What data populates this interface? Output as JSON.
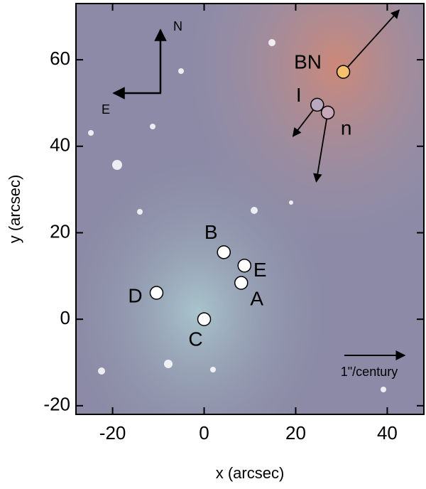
{
  "chart_data": {
    "type": "scatter",
    "x_label": "x (arcsec)",
    "y_label": "y (arcsec)",
    "xlim": [
      -28,
      48
    ],
    "ylim": [
      -22,
      73
    ],
    "xticks": [
      -20,
      0,
      20,
      40
    ],
    "yticks": [
      -20,
      0,
      20,
      40,
      60
    ],
    "labels": [
      "BN",
      "I",
      "n",
      "B",
      "E",
      "A",
      "D",
      "C"
    ],
    "x": [
      30.4,
      24.7,
      27.0,
      4.3,
      8.8,
      8.1,
      -10.4,
      0
    ],
    "y": [
      57.2,
      49.6,
      47.8,
      15.5,
      12.4,
      8.4,
      6.1,
      0
    ],
    "colors": [
      "#f5c26b",
      "#b8a8c0",
      "#c8a8b8",
      "#ffffff",
      "#ffffff",
      "#ffffff",
      "#ffffff",
      "#ffffff"
    ],
    "arrow_x": [
      42.6,
      19.4,
      24.5,
      null,
      null,
      null,
      null,
      null
    ],
    "arrow_y": [
      71.5,
      42.3,
      31.8,
      null,
      null,
      null,
      null,
      null
    ],
    "compass": {
      "north": "N",
      "east": "E"
    },
    "scale_label": "1\"/century"
  }
}
